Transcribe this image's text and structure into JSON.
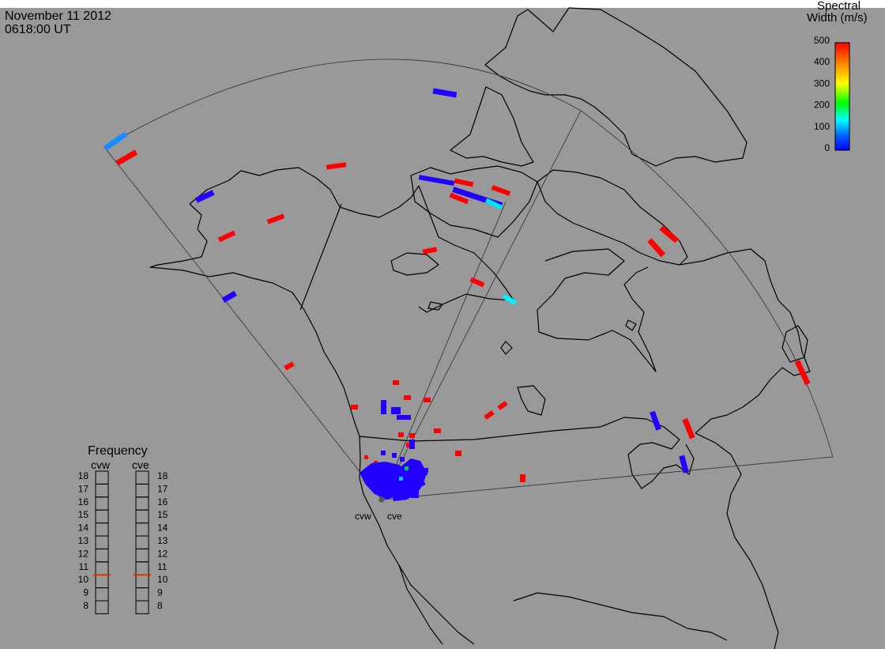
{
  "header": {
    "date": "November 11 2012",
    "time": "0618:00 UT"
  },
  "colorbar": {
    "title_line1": "Spectral",
    "title_line2": "Width (m/s)",
    "ticks": [
      "500",
      "400",
      "300",
      "200",
      "100",
      "0"
    ],
    "min": 0,
    "max": 500,
    "colors": [
      "#0000ff",
      "#00aaff",
      "#00ffff",
      "#00ff00",
      "#ffff00",
      "#ff8800",
      "#ff0000"
    ]
  },
  "frequency": {
    "title": "Frequency",
    "unit_note": "",
    "scale": [
      "18",
      "17",
      "16",
      "15",
      "14",
      "13",
      "12",
      "11",
      "10",
      "9",
      "8"
    ],
    "radars": [
      {
        "code": "cvw",
        "value": 10.5,
        "marker_color": "#dd3300"
      },
      {
        "code": "cve",
        "value": 10.5,
        "marker_color": "#dd3300"
      }
    ]
  },
  "map": {
    "background": "#999999",
    "sites": [
      {
        "label": "cvw"
      },
      {
        "label": "cve"
      }
    ]
  }
}
